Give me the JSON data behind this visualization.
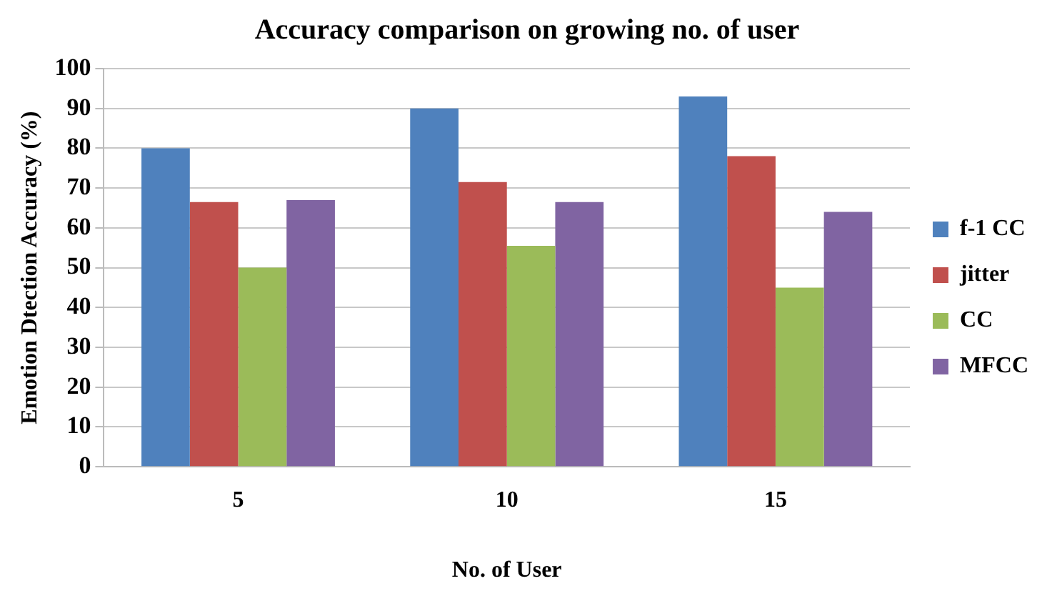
{
  "chart_data": {
    "type": "bar",
    "title": "Accuracy comparison on growing no. of user",
    "xlabel": "No. of User",
    "ylabel": "Emotion Dtection Accuracy (%)",
    "categories": [
      "5",
      "10",
      "15"
    ],
    "series": [
      {
        "name": "f-1 CC",
        "color": "#4f81bd",
        "values": [
          80,
          90,
          93
        ]
      },
      {
        "name": "jitter",
        "color": "#c0504d",
        "values": [
          66.5,
          71.5,
          78
        ]
      },
      {
        "name": "CC",
        "color": "#9bbb59",
        "values": [
          50,
          55.5,
          45
        ]
      },
      {
        "name": "MFCC",
        "color": "#8064a2",
        "values": [
          67,
          66.5,
          64
        ]
      }
    ],
    "ylim": [
      0,
      100
    ],
    "yticks": [
      0,
      10,
      20,
      30,
      40,
      50,
      60,
      70,
      80,
      90,
      100
    ],
    "grid": "y",
    "legend": "right"
  }
}
